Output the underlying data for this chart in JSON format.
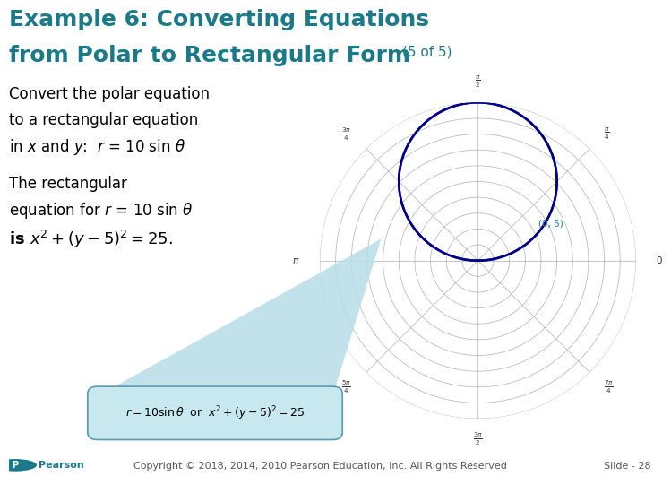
{
  "title_line1": "Example 6: Converting Equations",
  "title_line2": "from Polar to Rectangular Form",
  "title_suffix": "(5 of 5)",
  "title_color": "#1a7a8a",
  "title_fontsize": 18,
  "title_suffix_fontsize": 11,
  "bg_color": "#ffffff",
  "text1_color": "#000000",
  "text_fontsize": 12,
  "polar_circle_color": "#00008b",
  "polar_grid_color": "#b0b0b0",
  "annotation_color": "#1a7a8a",
  "box_fill_color": "#c8e8f0",
  "box_border_color": "#5a9ab0",
  "callout_color": "#b8dde8",
  "footer_text": "Copyright © 2018, 2014, 2010 Pearson Education, Inc. All Rights Reserved",
  "slide_text": "Slide - 28",
  "footer_color": "#555555",
  "footer_fontsize": 8,
  "pearson_color": "#1a7a8a",
  "num_rings": 10,
  "max_r": 10.0
}
